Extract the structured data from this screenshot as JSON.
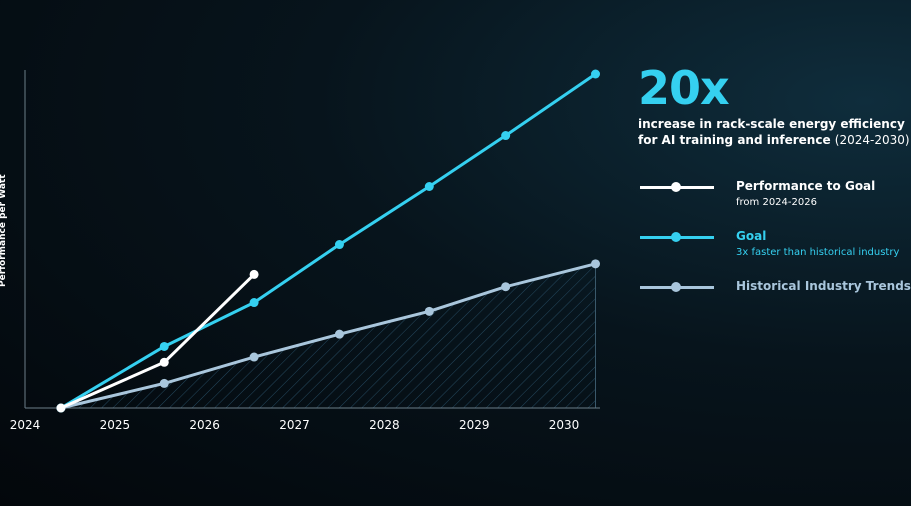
{
  "chart_data": {
    "type": "line",
    "ylabel": "Performance per Watt",
    "xlabel": "",
    "x_ticks": [
      "2024",
      "2025",
      "2026",
      "2027",
      "2028",
      "2029",
      "2030"
    ],
    "xlim": [
      2024,
      2030.4
    ],
    "ylim": [
      1,
      20
    ],
    "series": [
      {
        "name": "Performance to Goal",
        "color": "#ffffff",
        "x": [
          2024.4,
          2025.55,
          2026.55
        ],
        "y": [
          1,
          3.6,
          8.6
        ]
      },
      {
        "name": "Goal",
        "color": "#35d0f0",
        "x": [
          2024.4,
          2025.55,
          2026.55,
          2027.5,
          2028.5,
          2029.35,
          2030.35
        ],
        "y": [
          1,
          4.5,
          7.0,
          10.3,
          13.6,
          16.5,
          20.0
        ]
      },
      {
        "name": "Historical Industry Trends",
        "color": "#a9c6dc",
        "x": [
          2024.4,
          2025.55,
          2026.55,
          2027.5,
          2028.5,
          2029.35,
          2030.35
        ],
        "y": [
          1,
          2.4,
          3.9,
          5.2,
          6.5,
          7.9,
          9.2
        ]
      }
    ]
  },
  "headline": {
    "big": "20x",
    "line1": "increase in rack-scale energy efficiency",
    "line2": "for AI training and inference",
    "years": "(2024-2030)"
  },
  "legend": [
    {
      "title": "Performance to Goal",
      "sub": "from 2024-2026",
      "color": "#ffffff",
      "sub_color": "#ffffff"
    },
    {
      "title": "Goal",
      "sub": "3x faster than historical industry",
      "color": "#35d0f0",
      "sub_color": "#35d0f0"
    },
    {
      "title": "Historical Industry Trends",
      "sub": "",
      "color": "#a9c6dc",
      "sub_color": "#a9c6dc"
    }
  ]
}
